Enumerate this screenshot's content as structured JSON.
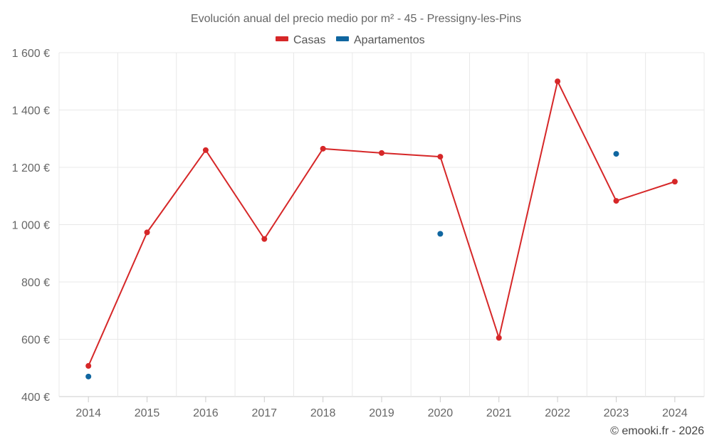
{
  "chart_data": {
    "type": "line",
    "title": "Evolución anual del precio medio por m² - 45 - Pressigny-les-Pins",
    "categories": [
      "2014",
      "2015",
      "2016",
      "2017",
      "2018",
      "2019",
      "2020",
      "2021",
      "2022",
      "2023",
      "2024"
    ],
    "series": [
      {
        "name": "Casas",
        "color": "#d62728",
        "connect": true,
        "values": [
          507,
          973,
          1260,
          950,
          1265,
          1250,
          1237,
          605,
          1500,
          1083,
          1150
        ]
      },
      {
        "name": "Apartamentos",
        "color": "#1066a0",
        "connect": false,
        "values": [
          470,
          null,
          null,
          null,
          null,
          null,
          968,
          null,
          null,
          1247,
          null
        ]
      }
    ],
    "ylim": [
      400,
      1600
    ],
    "yticks": [
      400,
      600,
      800,
      1000,
      1200,
      1400,
      1600
    ],
    "ytick_labels": [
      "400 €",
      "600 €",
      "800 €",
      "1 000 €",
      "1 200 €",
      "1 400 €",
      "1 600 €"
    ],
    "xlabel": "",
    "ylabel": "",
    "grid": true,
    "legend_position": "top-center"
  },
  "credit": "© emooki.fr - 2026"
}
